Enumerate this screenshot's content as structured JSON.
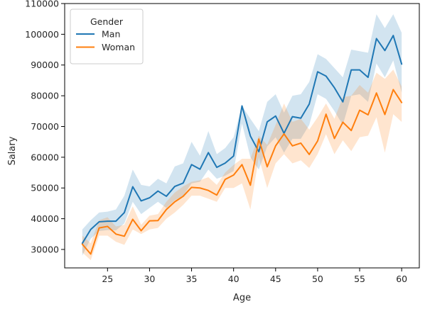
{
  "chart_data": {
    "type": "line",
    "xlabel": "Age",
    "ylabel": "Salary",
    "xlim": [
      19.9,
      62.1
    ],
    "ylim": [
      24000,
      110000
    ],
    "xticks": [
      25,
      30,
      35,
      40,
      45,
      50,
      55,
      60
    ],
    "yticks": [
      30000,
      40000,
      50000,
      60000,
      70000,
      80000,
      90000,
      100000,
      110000
    ],
    "grid": false,
    "legend": {
      "title": "Gender",
      "placement": "top-left"
    },
    "x": [
      22,
      23,
      24,
      25,
      26,
      27,
      28,
      29,
      30,
      31,
      32,
      33,
      34,
      35,
      36,
      37,
      38,
      39,
      40,
      41,
      42,
      43,
      44,
      45,
      46,
      47,
      48,
      49,
      50,
      51,
      52,
      53,
      54,
      55,
      56,
      57,
      58,
      59,
      60
    ],
    "series": [
      {
        "name": "Man",
        "color": "#1f77b4",
        "values": [
          32000,
          36500,
          39000,
          39200,
          39200,
          42000,
          50400,
          45800,
          46800,
          49000,
          47300,
          50500,
          51600,
          57600,
          56100,
          61500,
          56700,
          58100,
          60400,
          76700,
          66900,
          61800,
          71500,
          73400,
          67800,
          73200,
          72700,
          77300,
          87800,
          86400,
          82600,
          78000,
          88400,
          88400,
          86000,
          98600,
          94700,
          99600,
          90300
        ],
        "ci_low": [
          28000,
          33500,
          36000,
          36300,
          36200,
          38500,
          45500,
          41500,
          43500,
          45500,
          43500,
          46000,
          47500,
          51500,
          52000,
          56000,
          53000,
          54000,
          55500,
          71000,
          60000,
          56000,
          63500,
          66500,
          61500,
          66000,
          66000,
          70500,
          80500,
          79000,
          75000,
          70500,
          80000,
          80500,
          78000,
          90500,
          86000,
          91500,
          81000
        ],
        "ci_high": [
          36500,
          39500,
          42000,
          42300,
          43000,
          47500,
          56000,
          51000,
          50500,
          53000,
          51500,
          57000,
          58000,
          65000,
          60500,
          68500,
          61000,
          63000,
          66500,
          76700,
          72500,
          68500,
          78000,
          80500,
          74500,
          80000,
          80500,
          84500,
          93500,
          92000,
          89000,
          86000,
          95000,
          94500,
          94000,
          106500,
          102000,
          106500,
          100500
        ]
      },
      {
        "name": "Woman",
        "color": "#ff7f0e",
        "values": [
          31700,
          28500,
          37000,
          37500,
          35000,
          34300,
          39800,
          36100,
          39300,
          39400,
          43000,
          45500,
          47300,
          50200,
          50000,
          49200,
          47700,
          52800,
          54200,
          57600,
          50900,
          65900,
          56900,
          63700,
          67600,
          63700,
          64600,
          60900,
          65300,
          74000,
          66100,
          71400,
          68700,
          75300,
          73800,
          80900,
          73900,
          82000,
          77800
        ],
        "ci_low": [
          29000,
          26500,
          34500,
          34500,
          32500,
          31500,
          36500,
          35000,
          36500,
          37000,
          40000,
          42000,
          44500,
          47500,
          47500,
          46500,
          45500,
          50000,
          50000,
          51500,
          43000,
          60000,
          50000,
          58000,
          61000,
          58000,
          59000,
          56500,
          61000,
          67500,
          61000,
          65500,
          62000,
          66500,
          67000,
          73000,
          61500,
          74000,
          71500
        ],
        "ci_high": [
          34500,
          32000,
          39500,
          40500,
          37500,
          38000,
          44000,
          38000,
          41000,
          41500,
          45500,
          48500,
          50500,
          52000,
          52500,
          53500,
          51000,
          55000,
          57500,
          59500,
          59500,
          67000,
          64000,
          70500,
          77500,
          71500,
          72500,
          69000,
          73000,
          77500,
          72500,
          79500,
          80000,
          83500,
          81000,
          87500,
          85500,
          88500,
          83000
        ]
      }
    ]
  }
}
